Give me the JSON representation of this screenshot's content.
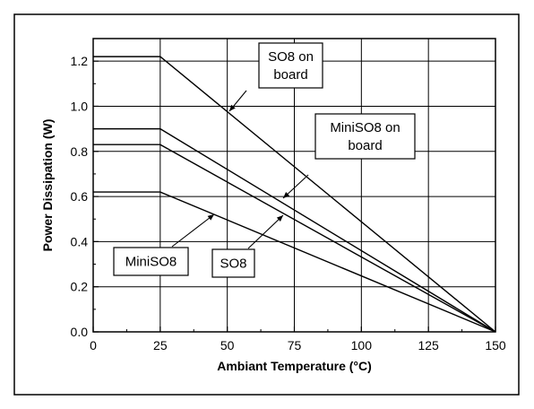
{
  "chart_data": {
    "type": "line",
    "title": "",
    "xlabel": "Ambiant Temperature (°C)",
    "ylabel": "Power Dissipation (W)",
    "xlim": [
      0,
      150
    ],
    "ylim": [
      0,
      1.3
    ],
    "xticks": [
      0,
      25,
      50,
      75,
      100,
      125,
      150
    ],
    "xtick_labels": [
      "0",
      "25",
      "50",
      "75",
      "100",
      "125",
      "150"
    ],
    "yticks": [
      0,
      0.2,
      0.4,
      0.6,
      0.8,
      1.0,
      1.2
    ],
    "ytick_labels": [
      "0.0",
      "0.2",
      "0.4",
      "0.6",
      "0.8",
      "1.0",
      "1.2"
    ],
    "grid": true,
    "series": [
      {
        "name": "SO8 on board",
        "x": [
          0,
          25,
          150
        ],
        "y": [
          1.22,
          1.22,
          0
        ],
        "label_lines": [
          "SO8 on",
          "board"
        ]
      },
      {
        "name": "MiniSO8 on board",
        "x": [
          0,
          25,
          150
        ],
        "y": [
          0.9,
          0.9,
          0
        ],
        "label_lines": [
          "MiniSO8 on",
          "board"
        ]
      },
      {
        "name": "SO8",
        "x": [
          0,
          25,
          150
        ],
        "y": [
          0.83,
          0.83,
          0
        ],
        "label_lines": [
          "SO8"
        ]
      },
      {
        "name": "MiniSO8",
        "x": [
          0,
          25,
          150
        ],
        "y": [
          0.62,
          0.62,
          0
        ],
        "label_lines": [
          "MiniSO8"
        ]
      }
    ]
  }
}
